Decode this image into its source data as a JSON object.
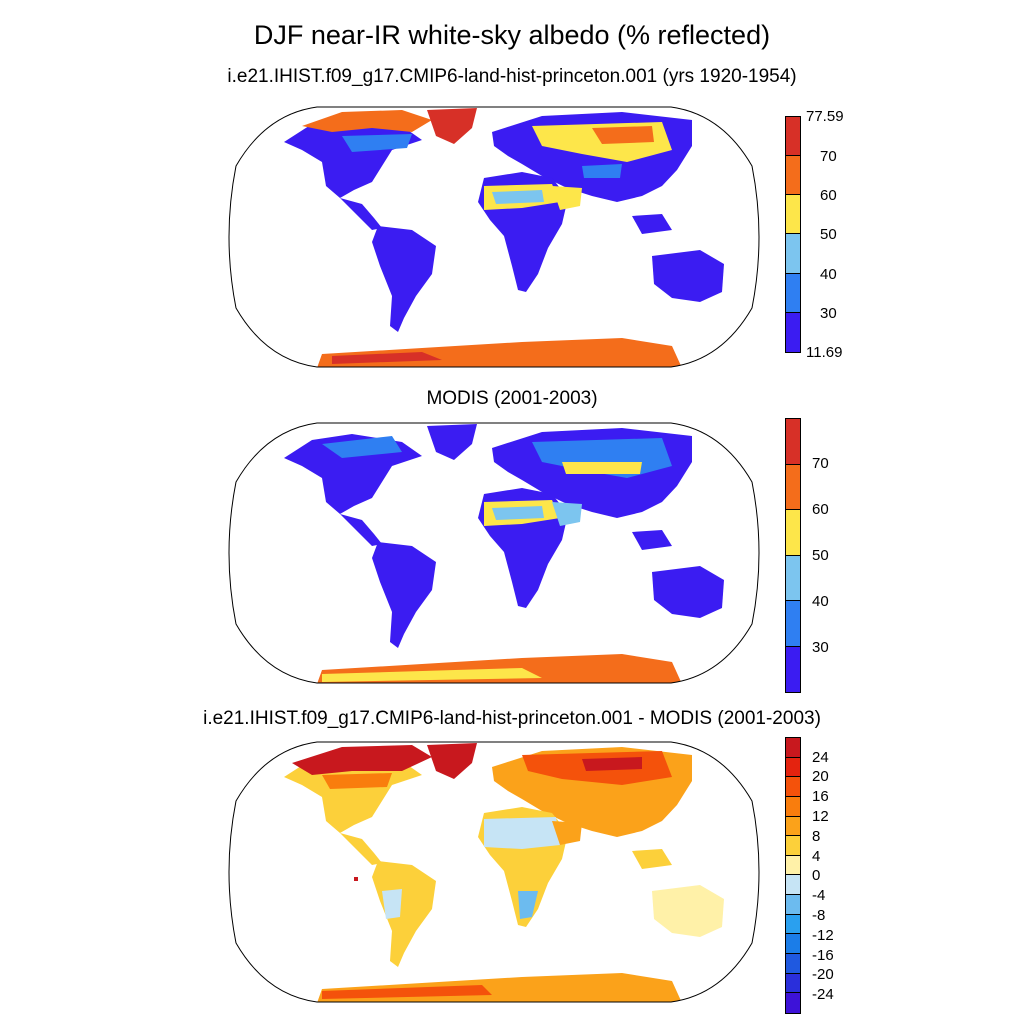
{
  "title": "DJF near-IR white-sky albedo (% reflected)",
  "panels": [
    {
      "subtitle": "i.e21.IHIST.f09_g17.CMIP6-land-hist-princeton.001 (yrs 1920-1954)",
      "colorbar": {
        "labels": [
          "77.59",
          "70",
          "60",
          "50",
          "40",
          "30",
          "11.69"
        ],
        "colors": [
          "#d73027",
          "#f46d1b",
          "#fde64a",
          "#7cc5ef",
          "#2f7ff2",
          "#3b1cf2"
        ]
      }
    },
    {
      "subtitle": "MODIS (2001-2003)",
      "colorbar": {
        "labels": [
          "70",
          "60",
          "50",
          "40",
          "30"
        ],
        "colors": [
          "#d73027",
          "#f46d1b",
          "#fde64a",
          "#7cc5ef",
          "#2f7ff2",
          "#3b1cf2"
        ]
      }
    },
    {
      "subtitle": "i.e21.IHIST.f09_g17.CMIP6-land-hist-princeton.001 - MODIS (2001-2003)",
      "colorbar": {
        "labels": [
          "24",
          "20",
          "16",
          "12",
          "8",
          "4",
          "0",
          "-4",
          "-8",
          "-12",
          "-16",
          "-20",
          "-24"
        ],
        "colors": [
          "#c8181e",
          "#e4230f",
          "#f4520b",
          "#f97d0d",
          "#fba21a",
          "#fcd03a",
          "#fff1a8",
          "#c6e4f5",
          "#6cbbef",
          "#2aa0ef",
          "#1b7de8",
          "#1f59e0",
          "#2a2fdb",
          "#3d12d8"
        ]
      }
    }
  ]
}
